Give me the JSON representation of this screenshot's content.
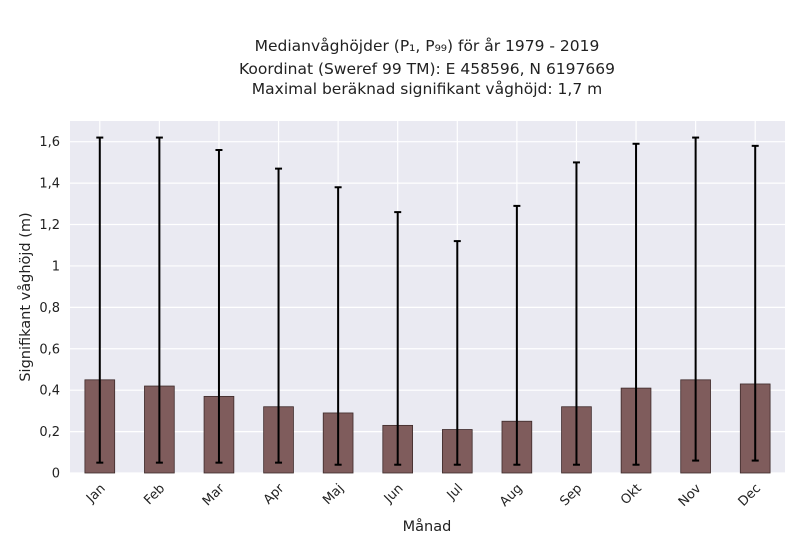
{
  "chart_data": {
    "type": "bar",
    "title_lines": [
      "Medianvåghöjder (P₁, P₉₉) för år 1979 - 2019",
      "Koordinat (Sweref 99 TM): E 458596, N 6197669",
      "Maximal beräknad signifikant våghöjd: 1,7 m"
    ],
    "xlabel": "Månad",
    "ylabel": "Signifikant våghöjd (m)",
    "categories": [
      "Jan",
      "Feb",
      "Mar",
      "Apr",
      "Maj",
      "Jun",
      "Jul",
      "Aug",
      "Sep",
      "Okt",
      "Nov",
      "Dec"
    ],
    "values": [
      0.45,
      0.42,
      0.37,
      0.32,
      0.29,
      0.23,
      0.21,
      0.25,
      0.32,
      0.41,
      0.45,
      0.43
    ],
    "p1": [
      0.05,
      0.05,
      0.05,
      0.05,
      0.04,
      0.04,
      0.04,
      0.04,
      0.04,
      0.04,
      0.06,
      0.06
    ],
    "p99": [
      1.62,
      1.62,
      1.56,
      1.47,
      1.38,
      1.26,
      1.12,
      1.29,
      1.5,
      1.59,
      1.62,
      1.58
    ],
    "yticks": [
      0,
      0.2,
      0.4,
      0.6,
      0.8,
      1,
      1.2,
      1.4,
      1.6
    ],
    "ytick_labels": [
      "0",
      "0,2",
      "0,4",
      "0,6",
      "0,8",
      "1",
      "1,2",
      "1,4",
      "1,6"
    ],
    "ylim": [
      0,
      1.7
    ],
    "grid": true,
    "colors": {
      "bar": "#7f5c5c",
      "bar_edge": "#3d2a2a",
      "errorbar": "#000000",
      "background": "#eaeaf2",
      "grid": "#ffffff"
    }
  }
}
